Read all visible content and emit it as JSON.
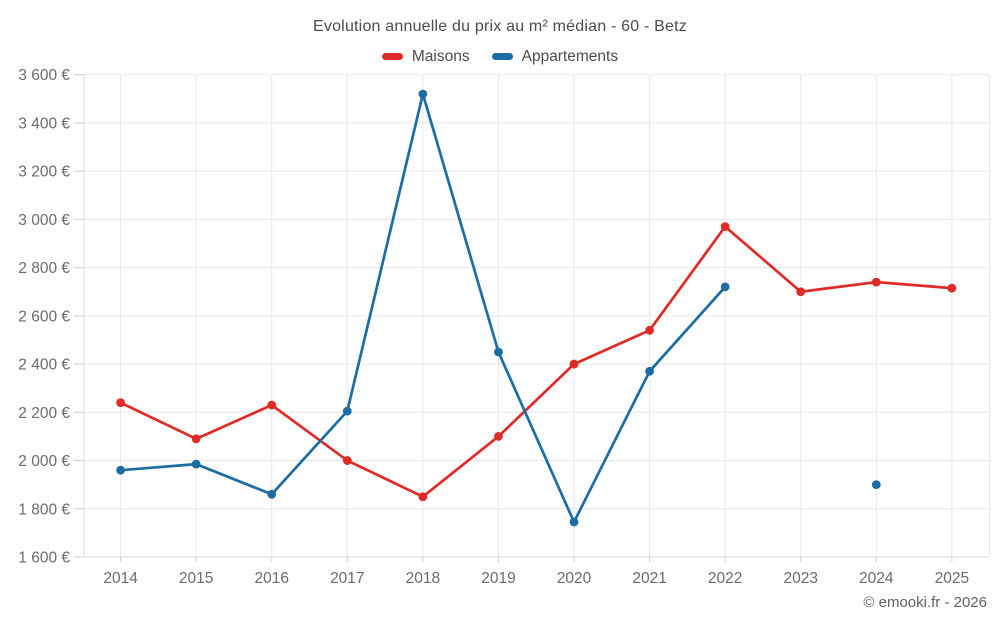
{
  "chart": {
    "title": "Evolution annuelle du prix au m² médian - 60 - Betz",
    "copyright": "© emooki.fr - 2026"
  },
  "chart_data": {
    "type": "line",
    "x": [
      2014,
      2015,
      2016,
      2017,
      2018,
      2019,
      2020,
      2021,
      2022,
      2023,
      2024,
      2025
    ],
    "series": [
      {
        "name": "Maisons",
        "color": "#e02a26",
        "values": [
          2240,
          2090,
          2230,
          2000,
          1850,
          2100,
          2400,
          2540,
          2970,
          2700,
          2740,
          2715
        ]
      },
      {
        "name": "Appartements",
        "color": "#1b6da3",
        "values": [
          1960,
          1985,
          1860,
          2205,
          3520,
          2450,
          1745,
          2370,
          2720,
          null,
          1900,
          null
        ]
      }
    ],
    "ylim": [
      1600,
      3600
    ],
    "ytick_step": 200,
    "y_format": "{value} €",
    "grid": true,
    "legend_position": "top",
    "colors": {
      "grid_line": "#e8e8e8",
      "axis_line": "#d9d9d9",
      "tick_mark": "#cfcfcf",
      "tick_label": "#6b6b6b"
    }
  }
}
